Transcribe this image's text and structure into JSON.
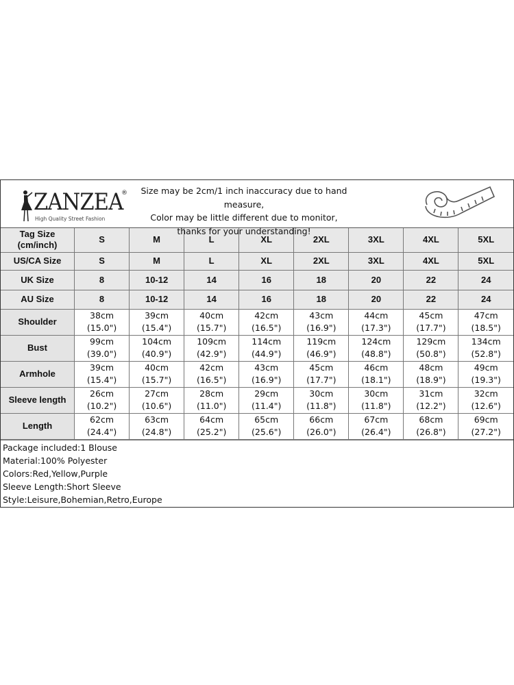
{
  "header": {
    "brand": "ZANZEA",
    "brand_tagline": "High Quality Street Fashion",
    "notice": [
      "Size may be 2cm/1 inch inaccuracy due to hand measure,",
      "Color may be little different due to monitor,",
      "thanks for your understanding!"
    ],
    "icons": [
      "woman-silhouette-icon",
      "measuring-tape-icon"
    ]
  },
  "size_rows": [
    {
      "label": "Tag Size (cm/inch)",
      "values": [
        "S",
        "M",
        "L",
        "XL",
        "2XL",
        "3XL",
        "4XL",
        "5XL"
      ]
    },
    {
      "label": "US/CA Size",
      "values": [
        "S",
        "M",
        "L",
        "XL",
        "2XL",
        "3XL",
        "4XL",
        "5XL"
      ]
    },
    {
      "label": "UK Size",
      "values": [
        "8",
        "10-12",
        "14",
        "16",
        "18",
        "20",
        "22",
        "24"
      ]
    },
    {
      "label": "AU Size",
      "values": [
        "8",
        "10-12",
        "14",
        "16",
        "18",
        "20",
        "22",
        "24"
      ]
    }
  ],
  "measure_rows": [
    {
      "label": "Shoulder",
      "cm": [
        "38cm",
        "39cm",
        "40cm",
        "42cm",
        "43cm",
        "44cm",
        "45cm",
        "47cm"
      ],
      "inch": [
        "(15.0\")",
        "(15.4\")",
        "(15.7\")",
        "(16.5\")",
        "(16.9\")",
        "(17.3\")",
        "(17.7\")",
        "(18.5\")"
      ]
    },
    {
      "label": "Bust",
      "cm": [
        "99cm",
        "104cm",
        "109cm",
        "114cm",
        "119cm",
        "124cm",
        "129cm",
        "134cm"
      ],
      "inch": [
        "(39.0\")",
        "(40.9\")",
        "(42.9\")",
        "(44.9\")",
        "(46.9\")",
        "(48.8\")",
        "(50.8\")",
        "(52.8\")"
      ]
    },
    {
      "label": "Armhole",
      "cm": [
        "39cm",
        "40cm",
        "42cm",
        "43cm",
        "45cm",
        "46cm",
        "48cm",
        "49cm"
      ],
      "inch": [
        "(15.4\")",
        "(15.7\")",
        "(16.5\")",
        "(16.9\")",
        "(17.7\")",
        "(18.1\")",
        "(18.9\")",
        "(19.3\")"
      ]
    },
    {
      "label": "Sleeve length",
      "cm": [
        "26cm",
        "27cm",
        "28cm",
        "29cm",
        "30cm",
        "30cm",
        "31cm",
        "32cm"
      ],
      "inch": [
        "(10.2\")",
        "(10.6\")",
        "(11.0\")",
        "(11.4\")",
        "(11.8\")",
        "(11.8\")",
        "(12.2\")",
        "(12.6\")"
      ]
    },
    {
      "label": "Length",
      "cm": [
        "62cm",
        "63cm",
        "64cm",
        "65cm",
        "66cm",
        "67cm",
        "68cm",
        "69cm"
      ],
      "inch": [
        "(24.4\")",
        "(24.8\")",
        "(25.2\")",
        "(25.6\")",
        "(26.0\")",
        "(26.4\")",
        "(26.8\")",
        "(27.2\")"
      ]
    }
  ],
  "notes": [
    "Package included:1 Blouse",
    "Material:100% Polyester",
    "Colors:Red,Yellow,Purple",
    "Sleeve Length:Short Sleeve",
    "Style:Leisure,Bohemian,Retro,Europe"
  ]
}
